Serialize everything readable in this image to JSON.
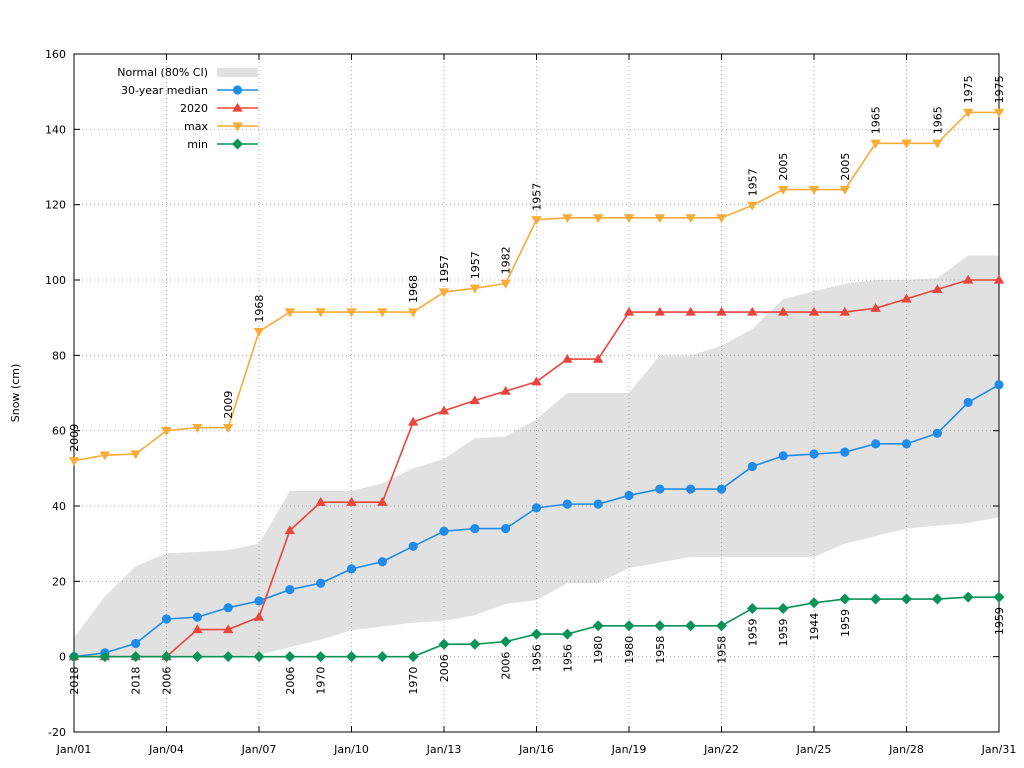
{
  "chart_data": {
    "type": "line",
    "title": "",
    "xlabel": "",
    "ylabel": "Snow (cm)",
    "ylim": [
      -20,
      160
    ],
    "yticks": [
      -20,
      0,
      20,
      40,
      60,
      80,
      100,
      120,
      140,
      160
    ],
    "xlim": [
      1,
      31
    ],
    "xticks": [
      {
        "day": 1,
        "label": "Jan/01"
      },
      {
        "day": 4,
        "label": "Jan/04"
      },
      {
        "day": 7,
        "label": "Jan/07"
      },
      {
        "day": 10,
        "label": "Jan/10"
      },
      {
        "day": 13,
        "label": "Jan/13"
      },
      {
        "day": 16,
        "label": "Jan/16"
      },
      {
        "day": 19,
        "label": "Jan/19"
      },
      {
        "day": 22,
        "label": "Jan/22"
      },
      {
        "day": 25,
        "label": "Jan/25"
      },
      {
        "day": 28,
        "label": "Jan/28"
      },
      {
        "day": 31,
        "label": "Jan/31"
      }
    ],
    "grid": true,
    "legend_position": "top-left",
    "days": [
      1,
      2,
      3,
      4,
      5,
      6,
      7,
      8,
      9,
      10,
      11,
      12,
      13,
      14,
      15,
      16,
      17,
      18,
      19,
      20,
      21,
      22,
      23,
      24,
      25,
      26,
      27,
      28,
      29,
      30,
      31
    ],
    "band": {
      "name": "Normal (80% CI)",
      "color": "#e1e1e1",
      "upper_days": [
        1,
        2,
        3,
        4,
        5,
        6,
        7,
        8,
        9,
        10,
        11,
        12,
        13,
        14,
        15,
        16,
        17,
        18,
        19,
        20,
        21,
        22,
        23,
        24,
        25,
        26,
        27,
        28,
        29,
        30,
        31
      ],
      "upper": [
        5,
        16,
        24,
        27.5,
        27.8,
        28.3,
        30,
        44,
        44,
        44,
        46,
        50,
        52.5,
        58,
        58.5,
        63,
        70,
        70,
        70,
        80,
        80,
        82.5,
        87,
        95,
        97,
        99,
        100,
        100,
        100.5,
        106.5,
        106.5
      ],
      "lower": [
        0,
        0,
        0,
        0,
        0,
        0,
        0.5,
        2.5,
        4.5,
        7,
        8,
        9,
        9.5,
        11,
        14,
        15,
        19.5,
        19.5,
        23.5,
        25,
        26.5,
        26.5,
        26.5,
        26.5,
        26.5,
        30,
        32,
        34,
        34.8,
        35.5,
        37
      ]
    },
    "series": [
      {
        "name": "30-year median",
        "color": "#1f8ceb",
        "marker": "circle",
        "values": [
          0,
          1,
          3.5,
          10,
          10.5,
          13,
          14.8,
          17.8,
          19.5,
          23.3,
          25.2,
          29.3,
          33.3,
          34,
          34,
          39.5,
          40.5,
          40.5,
          42.8,
          44.5,
          44.5,
          44.5,
          50.5,
          53.3,
          53.8,
          54.3,
          56.5,
          56.5,
          59.3,
          67.5,
          72.2
        ]
      },
      {
        "name": "2020",
        "color": "#e8453c",
        "marker": "triangle-up",
        "values": [
          0,
          0,
          0,
          0,
          7.2,
          7.2,
          10.5,
          33.5,
          41,
          41,
          41,
          62.3,
          65.3,
          68,
          70.5,
          73,
          79,
          79,
          91.5,
          91.5,
          91.5,
          91.5,
          91.5,
          91.5,
          91.5,
          91.5,
          92.5,
          95,
          97.5,
          100,
          100
        ]
      },
      {
        "name": "max",
        "color": "#f9ab37",
        "marker": "triangle-down",
        "values": [
          52,
          53.5,
          53.8,
          60,
          60.8,
          60.8,
          86.3,
          91.5,
          91.5,
          91.5,
          91.5,
          91.5,
          96.8,
          97.8,
          99.1,
          116,
          116.5,
          116.5,
          116.5,
          116.5,
          116.5,
          116.5,
          119.8,
          124,
          124,
          124,
          136.3,
          136.3,
          136.3,
          144.5,
          144.5
        ],
        "year_labels": [
          {
            "day": 1,
            "year": "2009"
          },
          {
            "day": 6,
            "year": "2009"
          },
          {
            "day": 7,
            "year": "1968"
          },
          {
            "day": 12,
            "year": "1968"
          },
          {
            "day": 13,
            "year": "1957"
          },
          {
            "day": 14,
            "year": "1957"
          },
          {
            "day": 15,
            "year": "1982"
          },
          {
            "day": 16,
            "year": "1957"
          },
          {
            "day": 23,
            "year": "1957"
          },
          {
            "day": 24,
            "year": "2005"
          },
          {
            "day": 26,
            "year": "2005"
          },
          {
            "day": 27,
            "year": "1965"
          },
          {
            "day": 29,
            "year": "1965"
          },
          {
            "day": 30,
            "year": "1975"
          },
          {
            "day": 31,
            "year": "1975"
          }
        ]
      },
      {
        "name": "min",
        "color": "#0a9358",
        "marker": "diamond",
        "values": [
          0,
          0,
          0,
          0,
          0,
          0,
          0,
          0,
          0,
          0,
          0,
          0,
          3.3,
          3.3,
          4,
          6,
          6,
          8.2,
          8.2,
          8.2,
          8.2,
          8.2,
          12.8,
          12.8,
          14.3,
          15.3,
          15.3,
          15.3,
          15.3,
          15.8,
          15.8
        ],
        "year_labels": [
          {
            "day": 1,
            "year": "2018"
          },
          {
            "day": 3,
            "year": "2018"
          },
          {
            "day": 4,
            "year": "2006"
          },
          {
            "day": 8,
            "year": "2006"
          },
          {
            "day": 9,
            "year": "1970"
          },
          {
            "day": 12,
            "year": "1970"
          },
          {
            "day": 13,
            "year": "2006"
          },
          {
            "day": 15,
            "year": "2006"
          },
          {
            "day": 16,
            "year": "1956"
          },
          {
            "day": 17,
            "year": "1956"
          },
          {
            "day": 18,
            "year": "1980"
          },
          {
            "day": 19,
            "year": "1980"
          },
          {
            "day": 20,
            "year": "1958"
          },
          {
            "day": 22,
            "year": "1958"
          },
          {
            "day": 23,
            "year": "1959"
          },
          {
            "day": 24,
            "year": "1959"
          },
          {
            "day": 25,
            "year": "1944"
          },
          {
            "day": 26,
            "year": "1959"
          },
          {
            "day": 31,
            "year": "1959"
          }
        ]
      }
    ]
  }
}
